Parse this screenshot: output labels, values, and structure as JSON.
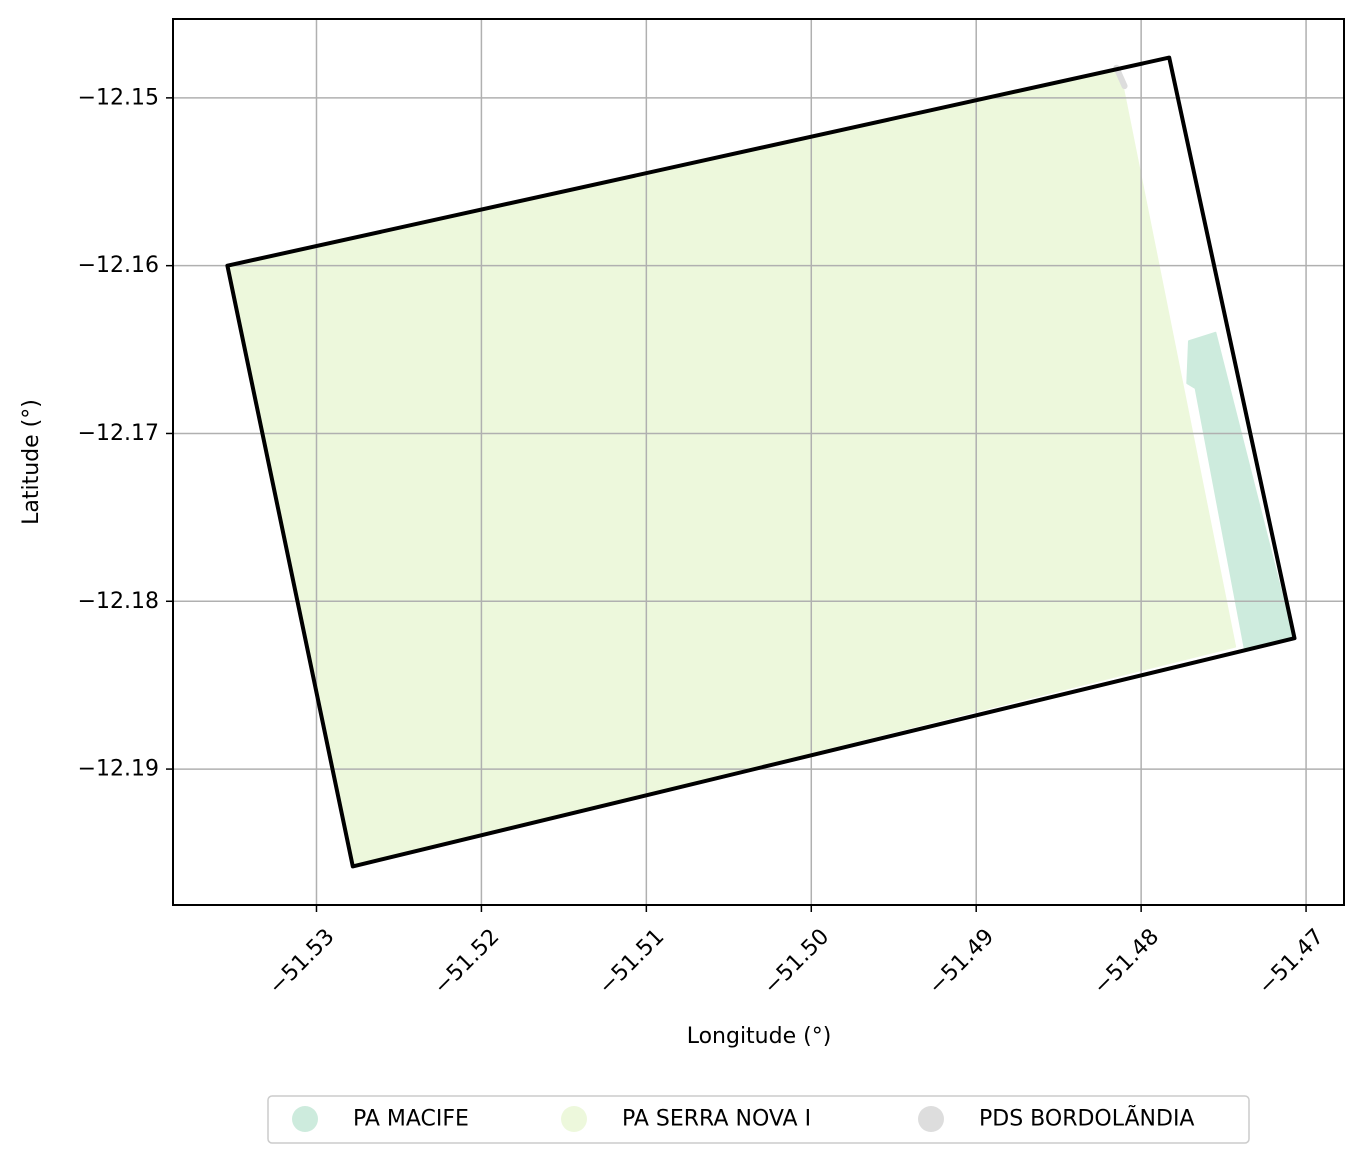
{
  "chart_data": {
    "type": "map",
    "xlabel": "Longitude (°)",
    "ylabel": "Latitude (°)",
    "xlim": [
      -51.5387,
      -51.4677
    ],
    "ylim": [
      -12.1981,
      -12.1453
    ],
    "x_ticks": [
      {
        "value": -51.53,
        "label": "−51.53"
      },
      {
        "value": -51.52,
        "label": "−51.52"
      },
      {
        "value": -51.51,
        "label": "−51.51"
      },
      {
        "value": -51.5,
        "label": "−51.50"
      },
      {
        "value": -51.49,
        "label": "−51.49"
      },
      {
        "value": -51.48,
        "label": "−51.48"
      },
      {
        "value": -51.47,
        "label": "−51.47"
      }
    ],
    "y_ticks": [
      {
        "value": -12.15,
        "label": "−12.15"
      },
      {
        "value": -12.16,
        "label": "−12.16"
      },
      {
        "value": -12.17,
        "label": "−12.17"
      },
      {
        "value": -12.18,
        "label": "−12.18"
      },
      {
        "value": -12.19,
        "label": "−12.19"
      }
    ],
    "grid": true,
    "legend_position": "bottom-center",
    "series": [
      {
        "name": "PA SERRA NOVA I",
        "color": "#edf8dc",
        "polygon": [
          [
            -51.5354,
            -12.16
          ],
          [
            -51.4814,
            -12.1484
          ],
          [
            -51.4812,
            -12.1489
          ],
          [
            -51.4743,
            -12.1827
          ],
          [
            -51.5278,
            -12.1958
          ]
        ]
      },
      {
        "name": "PA MACIFE",
        "color": "#cdebdd",
        "polygon": [
          [
            -51.4771,
            -12.1645
          ],
          [
            -51.4755,
            -12.164
          ],
          [
            -51.4708,
            -12.1822
          ],
          [
            -51.4737,
            -12.1829
          ],
          [
            -51.4767,
            -12.1673
          ],
          [
            -51.4772,
            -12.167
          ]
        ]
      },
      {
        "name": "PDS BORDOLÃNDIA",
        "color": "#dddddd",
        "polyline": [
          [
            -51.4815,
            -12.1482
          ],
          [
            -51.481,
            -12.1493
          ]
        ]
      }
    ],
    "boundary": {
      "color": "#000000",
      "polygon": [
        [
          -51.5354,
          -12.16
        ],
        [
          -51.4783,
          -12.1476
        ],
        [
          -51.4707,
          -12.1822
        ],
        [
          -51.5278,
          -12.1958
        ]
      ]
    }
  }
}
